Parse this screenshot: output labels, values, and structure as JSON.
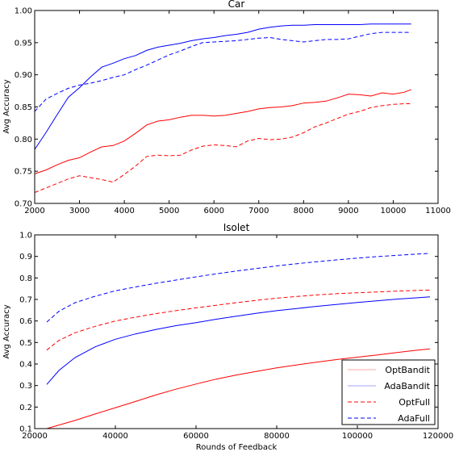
{
  "chart_data": [
    {
      "type": "line",
      "title": "Car",
      "xlabel": "",
      "ylabel": "Avg Accuracy",
      "xlim": [
        2000,
        11000
      ],
      "ylim": [
        0.7,
        1.0
      ],
      "xticks": [
        2000,
        3000,
        4000,
        5000,
        6000,
        7000,
        8000,
        9000,
        10000,
        11000
      ],
      "yticks": [
        "0.70",
        "0.75",
        "0.80",
        "0.85",
        "0.90",
        "0.95",
        "1.00"
      ],
      "series": [
        {
          "name": "OptBandit",
          "color": "#ff0000",
          "dash": "solid",
          "x": [
            2000,
            2250,
            2500,
            2750,
            3000,
            3250,
            3500,
            3750,
            4000,
            4250,
            4500,
            4750,
            5000,
            5250,
            5500,
            5750,
            6000,
            6250,
            6500,
            6750,
            7000,
            7250,
            7500,
            7750,
            8000,
            8250,
            8500,
            8750,
            9000,
            9250,
            9500,
            9750,
            10000,
            10250,
            10400
          ],
          "y": [
            0.746,
            0.752,
            0.76,
            0.767,
            0.771,
            0.78,
            0.788,
            0.79,
            0.797,
            0.809,
            0.822,
            0.828,
            0.83,
            0.834,
            0.837,
            0.837,
            0.836,
            0.837,
            0.84,
            0.843,
            0.847,
            0.849,
            0.85,
            0.852,
            0.856,
            0.857,
            0.859,
            0.864,
            0.87,
            0.869,
            0.867,
            0.872,
            0.87,
            0.873,
            0.877
          ]
        },
        {
          "name": "AdaBandit",
          "color": "#0000ff",
          "dash": "solid",
          "x": [
            2000,
            2250,
            2500,
            2750,
            3000,
            3250,
            3500,
            3750,
            4000,
            4250,
            4500,
            4750,
            5000,
            5250,
            5500,
            5750,
            6000,
            6250,
            6500,
            6750,
            7000,
            7250,
            7500,
            7750,
            8000,
            8250,
            8500,
            8750,
            9000,
            9250,
            9500,
            9750,
            10000,
            10250,
            10400
          ],
          "y": [
            0.784,
            0.81,
            0.838,
            0.865,
            0.88,
            0.897,
            0.912,
            0.918,
            0.925,
            0.93,
            0.938,
            0.943,
            0.946,
            0.949,
            0.953,
            0.956,
            0.958,
            0.961,
            0.963,
            0.966,
            0.971,
            0.974,
            0.976,
            0.977,
            0.977,
            0.978,
            0.978,
            0.978,
            0.978,
            0.978,
            0.979,
            0.979,
            0.979,
            0.979,
            0.979
          ]
        },
        {
          "name": "OptFull",
          "color": "#ff0000",
          "dash": "dashed",
          "x": [
            2000,
            2250,
            2500,
            2750,
            3000,
            3250,
            3500,
            3750,
            4000,
            4250,
            4500,
            4750,
            5000,
            5250,
            5500,
            5750,
            6000,
            6250,
            6500,
            6750,
            7000,
            7250,
            7500,
            7750,
            8000,
            8250,
            8500,
            8750,
            9000,
            9250,
            9500,
            9750,
            10000,
            10250,
            10400
          ],
          "y": [
            0.717,
            0.724,
            0.731,
            0.738,
            0.743,
            0.74,
            0.737,
            0.733,
            0.745,
            0.758,
            0.773,
            0.775,
            0.774,
            0.775,
            0.783,
            0.789,
            0.791,
            0.79,
            0.788,
            0.797,
            0.801,
            0.799,
            0.8,
            0.803,
            0.81,
            0.819,
            0.825,
            0.832,
            0.839,
            0.843,
            0.849,
            0.852,
            0.854,
            0.855,
            0.855
          ]
        },
        {
          "name": "AdaFull",
          "color": "#0000ff",
          "dash": "dashed",
          "x": [
            2000,
            2250,
            2500,
            2750,
            3000,
            3250,
            3500,
            3750,
            4000,
            4250,
            4500,
            4750,
            5000,
            5250,
            5500,
            5750,
            6000,
            6250,
            6500,
            6750,
            7000,
            7250,
            7500,
            7750,
            8000,
            8250,
            8500,
            8750,
            9000,
            9250,
            9500,
            9750,
            10000,
            10250,
            10400
          ],
          "y": [
            0.843,
            0.862,
            0.871,
            0.879,
            0.884,
            0.887,
            0.891,
            0.896,
            0.9,
            0.908,
            0.915,
            0.923,
            0.931,
            0.937,
            0.944,
            0.95,
            0.951,
            0.952,
            0.953,
            0.955,
            0.957,
            0.958,
            0.955,
            0.953,
            0.951,
            0.953,
            0.955,
            0.955,
            0.956,
            0.96,
            0.964,
            0.966,
            0.966,
            0.966,
            0.966
          ]
        }
      ]
    },
    {
      "type": "line",
      "title": "Isolet",
      "xlabel": "Rounds of Feedback",
      "ylabel": "Avg Accuracy",
      "xlim": [
        20000,
        120000
      ],
      "ylim": [
        0.1,
        1.0
      ],
      "xticks": [
        20000,
        40000,
        60000,
        80000,
        100000,
        120000
      ],
      "yticks": [
        "0.1",
        "0.2",
        "0.3",
        "0.4",
        "0.5",
        "0.6",
        "0.7",
        "0.8",
        "0.9",
        "1.0"
      ],
      "legend_position": "bottom-right",
      "series": [
        {
          "name": "OptBandit",
          "color": "#ff0000",
          "dash": "solid",
          "x": [
            23000,
            30000,
            35000,
            40000,
            45000,
            50000,
            55000,
            60000,
            65000,
            70000,
            75000,
            80000,
            85000,
            90000,
            95000,
            100000,
            105000,
            110000,
            115000,
            118000
          ],
          "y": [
            0.1,
            0.138,
            0.168,
            0.197,
            0.226,
            0.256,
            0.283,
            0.307,
            0.33,
            0.349,
            0.366,
            0.382,
            0.396,
            0.409,
            0.421,
            0.432,
            0.442,
            0.454,
            0.465,
            0.47
          ]
        },
        {
          "name": "AdaBandit",
          "color": "#0000ff",
          "dash": "solid",
          "x": [
            23000,
            26000,
            30000,
            35000,
            40000,
            45000,
            50000,
            55000,
            60000,
            65000,
            70000,
            75000,
            80000,
            85000,
            90000,
            95000,
            100000,
            105000,
            110000,
            115000,
            118000
          ],
          "y": [
            0.305,
            0.37,
            0.43,
            0.48,
            0.515,
            0.54,
            0.56,
            0.578,
            0.592,
            0.608,
            0.622,
            0.636,
            0.648,
            0.658,
            0.668,
            0.677,
            0.686,
            0.694,
            0.702,
            0.708,
            0.712
          ]
        },
        {
          "name": "OptFull",
          "color": "#ff0000",
          "dash": "dashed",
          "x": [
            23000,
            26000,
            30000,
            35000,
            40000,
            45000,
            50000,
            55000,
            60000,
            65000,
            70000,
            75000,
            80000,
            85000,
            90000,
            95000,
            100000,
            105000,
            110000,
            115000,
            118000
          ],
          "y": [
            0.465,
            0.51,
            0.545,
            0.575,
            0.6,
            0.618,
            0.634,
            0.648,
            0.661,
            0.673,
            0.685,
            0.696,
            0.706,
            0.714,
            0.721,
            0.727,
            0.731,
            0.735,
            0.739,
            0.742,
            0.744
          ]
        },
        {
          "name": "AdaFull",
          "color": "#0000ff",
          "dash": "dashed",
          "x": [
            23000,
            26000,
            30000,
            35000,
            40000,
            45000,
            50000,
            55000,
            60000,
            65000,
            70000,
            75000,
            80000,
            85000,
            90000,
            95000,
            100000,
            105000,
            110000,
            115000,
            118000
          ],
          "y": [
            0.595,
            0.645,
            0.685,
            0.715,
            0.74,
            0.758,
            0.775,
            0.79,
            0.805,
            0.819,
            0.832,
            0.844,
            0.856,
            0.866,
            0.875,
            0.884,
            0.892,
            0.899,
            0.905,
            0.911,
            0.914
          ]
        }
      ]
    }
  ]
}
